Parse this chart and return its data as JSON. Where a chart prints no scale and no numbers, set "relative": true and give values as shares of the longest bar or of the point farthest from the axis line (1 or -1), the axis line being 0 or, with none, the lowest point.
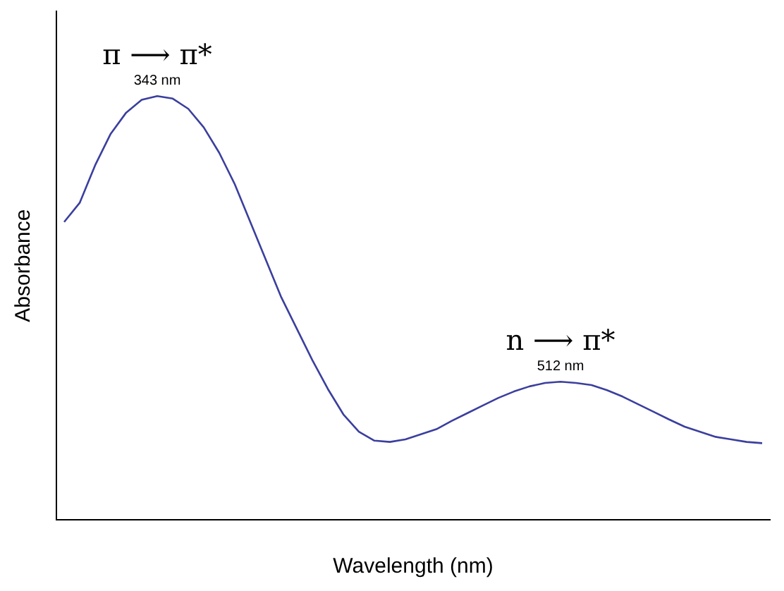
{
  "chart_data": {
    "type": "line",
    "xlabel": "Wavelength (nm)",
    "ylabel": "Absorbance",
    "relative": true,
    "grid": false,
    "legend": false,
    "marker": "none",
    "line_style": "solid",
    "categories": [
      null,
      null,
      null,
      null,
      null,
      null,
      null,
      null,
      null,
      null,
      null,
      null,
      null,
      null,
      null,
      null,
      null,
      null,
      null,
      null,
      null,
      null,
      null,
      null,
      null,
      null,
      null,
      null,
      null,
      null,
      null,
      null,
      null,
      null,
      null,
      null,
      null,
      null,
      null,
      null,
      null,
      null,
      null,
      null,
      null,
      null
    ],
    "series": [
      {
        "color": "#3b3f9e",
        "values": [
          0.703,
          0.748,
          0.837,
          0.911,
          0.961,
          0.991,
          1,
          0.994,
          0.97,
          0.926,
          0.866,
          0.792,
          0.703,
          0.614,
          0.525,
          0.451,
          0.377,
          0.309,
          0.249,
          0.208,
          0.187,
          0.184,
          0.19,
          0.202,
          0.214,
          0.234,
          0.252,
          0.27,
          0.288,
          0.303,
          0.315,
          0.323,
          0.326,
          0.323,
          0.318,
          0.306,
          0.291,
          0.273,
          0.255,
          0.237,
          0.22,
          0.208,
          0.196,
          0.19,
          0.184,
          0.181
        ]
      }
    ],
    "annotations": [
      "343 nm",
      "π ⟶ π*",
      "512 nm",
      "n ⟶ π*"
    ]
  }
}
